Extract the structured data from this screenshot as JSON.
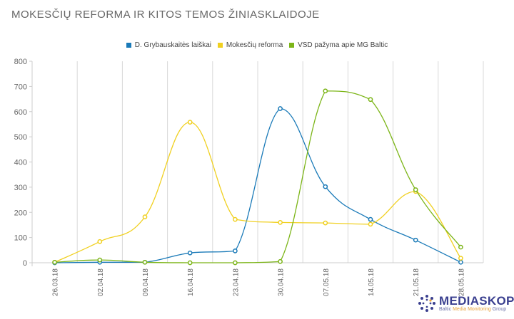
{
  "chart_data": {
    "type": "line",
    "title": "MOKESČIŲ REFORMA IR KITOS TEMOS ŽINIASKLAIDOJE",
    "categories": [
      "26.03.18",
      "02.04.18",
      "09.04.18",
      "16.04.18",
      "23.04.18",
      "30.04.18",
      "07.05.18",
      "14.05.18",
      "21.05.18",
      "28.05.18"
    ],
    "ylim": [
      0,
      800
    ],
    "yticks": [
      0,
      100,
      200,
      300,
      400,
      500,
      600,
      700,
      800
    ],
    "grid": "vertical",
    "legend": "top-center",
    "smooth": true,
    "series": [
      {
        "name": "D. Grybauskaitės laiškai",
        "color": "#1a7ab8",
        "values": [
          0,
          2,
          2,
          39,
          47,
          612,
          302,
          172,
          90,
          2
        ]
      },
      {
        "name": "Mokesčių reforma",
        "color": "#f0d020",
        "values": [
          2,
          84,
          182,
          558,
          172,
          160,
          158,
          153,
          283,
          18
        ]
      },
      {
        "name": "VSD pažyma apie MG Baltic",
        "color": "#7cb518",
        "values": [
          2,
          11,
          2,
          0,
          0,
          5,
          682,
          648,
          290,
          62
        ]
      }
    ]
  },
  "logo": {
    "name": "MEDIASKOPAS",
    "sub_a": "Baltic ",
    "sub_b": "Media Monitoring",
    "sub_c": " Group"
  }
}
